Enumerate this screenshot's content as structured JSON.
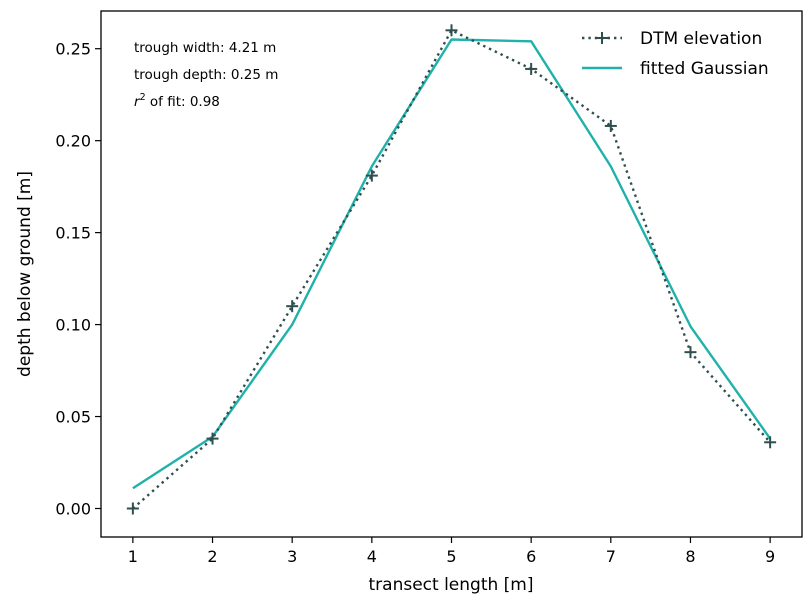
{
  "chart_data": {
    "type": "line",
    "xlabel": "transect length [m]",
    "ylabel": "depth below ground [m]",
    "xlim": [
      0.6,
      9.4
    ],
    "ylim": [
      -0.0155,
      0.2705
    ],
    "xticks": [
      1,
      2,
      3,
      4,
      5,
      6,
      7,
      8,
      9
    ],
    "yticks": [
      0.0,
      0.05,
      0.1,
      0.15,
      0.2,
      0.25
    ],
    "ytick_labels": [
      "0.00",
      "0.05",
      "0.10",
      "0.15",
      "0.20",
      "0.25"
    ],
    "grid": false,
    "legend_position": "top-right",
    "series": [
      {
        "name": "DTM elevation",
        "style": "dotted-with-plus-markers",
        "color": "#2f4f4f",
        "x": [
          1,
          2,
          3,
          4,
          5,
          6,
          7,
          8,
          9
        ],
        "y": [
          0.0,
          0.038,
          0.11,
          0.181,
          0.26,
          0.239,
          0.208,
          0.085,
          0.036
        ]
      },
      {
        "name": "fitted Gaussian",
        "style": "solid",
        "color": "#20b2aa",
        "x": [
          1,
          2,
          3,
          4,
          5,
          6,
          7,
          8,
          9
        ],
        "y": [
          0.011,
          0.039,
          0.1,
          0.186,
          0.255,
          0.254,
          0.186,
          0.099,
          0.038
        ]
      }
    ],
    "annotations": {
      "width": "trough width: 4.21 m",
      "depth": "trough depth: 0.25 m",
      "r2_prefix": "r",
      "r2_sup": "2",
      "r2_suffix": " of fit: 0.98"
    }
  }
}
